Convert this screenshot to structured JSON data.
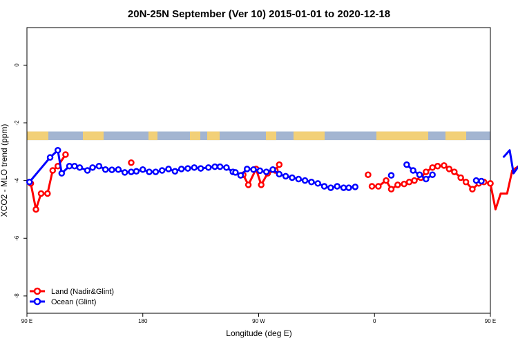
{
  "chart_data": {
    "type": "line",
    "title": "20N-25N September (Ver 10)   2015-01-01 to 2020-12-18",
    "xlabel": "Longitude (deg E)",
    "ylabel": "XCO2 - MLO trend (ppm)",
    "xlim": [
      90,
      450
    ],
    "ylim": [
      -8.6,
      1.3
    ],
    "xticks": [
      90,
      180,
      270,
      360,
      450,
      540
    ],
    "xtick_labels": [
      "90 E",
      "180",
      "90 W",
      "0",
      "90 E",
      "180"
    ],
    "yticks": [
      -8,
      -6,
      -4,
      -2,
      0
    ],
    "ytick_labels": [
      "-8",
      "-6",
      "-4",
      "-2",
      "0"
    ],
    "grid": false,
    "legend_position": "bottom-left",
    "map_band": {
      "y_top": -2.3,
      "y_bottom": -2.6,
      "ocean_color": "#a3b5d1",
      "land_color": "#f2d078"
    },
    "series": [
      {
        "name": "Land (Nadir&Glint)",
        "color": "#ff0000",
        "segments": [
          {
            "x": [
              93,
              97,
              101,
              106,
              110,
              114,
              120
            ],
            "y": [
              -4.1,
              -5.0,
              -4.45,
              -4.45,
              -3.65,
              -3.5,
              -3.1
            ]
          },
          {
            "x": [
              171
            ],
            "y": [
              -3.38
            ]
          },
          {
            "x": [
              258,
              262,
              268,
              272,
              277,
              283,
              286
            ],
            "y": [
              -3.8,
              -4.15,
              -3.6,
              -4.15,
              -3.75,
              -3.65,
              -3.45
            ]
          },
          {
            "x": [
              355
            ],
            "y": [
              -3.8
            ]
          },
          {
            "x": [
              358,
              363,
              369,
              373,
              378,
              383,
              387,
              391,
              396,
              400,
              405,
              409,
              414,
              418,
              422,
              427,
              431,
              436,
              441,
              445,
              450
            ],
            "y": [
              -4.2,
              -4.2,
              -4.0,
              -4.3,
              -4.15,
              -4.12,
              -4.05,
              -4.0,
              -3.9,
              -3.7,
              -3.55,
              -3.5,
              -3.48,
              -3.6,
              -3.7,
              -3.9,
              -4.05,
              -4.3,
              -4.1,
              -4.05,
              -4.1
            ]
          },
          {
            "x": [
              450,
              454,
              458,
              463,
              467,
              472,
              476
            ],
            "y": [
              -4.1,
              -5.0,
              -4.45,
              -4.45,
              -3.65,
              -3.5,
              -3.1
            ]
          }
        ]
      },
      {
        "name": "Ocean (Glint)",
        "color": "#0000ff",
        "segments": [
          {
            "x": [
              92,
              108,
              114,
              117,
              123,
              127,
              131,
              137,
              141,
              146,
              151,
              156,
              161,
              166,
              171,
              175,
              180,
              185,
              190,
              195,
              200,
              205,
              210,
              215,
              220,
              225,
              231,
              236,
              240,
              245,
              250,
              252,
              256,
              261,
              266,
              271,
              276,
              281,
              286,
              291,
              296,
              301,
              306,
              311,
              316,
              321,
              326,
              331,
              336,
              340,
              345
            ],
            "y": [
              -4.05,
              -3.2,
              -2.95,
              -3.75,
              -3.5,
              -3.5,
              -3.55,
              -3.65,
              -3.55,
              -3.5,
              -3.62,
              -3.63,
              -3.62,
              -3.72,
              -3.7,
              -3.68,
              -3.62,
              -3.7,
              -3.7,
              -3.65,
              -3.6,
              -3.68,
              -3.6,
              -3.58,
              -3.55,
              -3.58,
              -3.55,
              -3.52,
              -3.52,
              -3.55,
              -3.7,
              -3.72,
              -3.82,
              -3.6,
              -3.62,
              -3.66,
              -3.7,
              -3.62,
              -3.78,
              -3.85,
              -3.9,
              -3.95,
              -4.0,
              -4.05,
              -4.1,
              -4.2,
              -4.25,
              -4.2,
              -4.25,
              -4.25,
              -4.22
            ]
          },
          {
            "x": [
              373
            ],
            "y": [
              -3.82
            ]
          },
          {
            "x": [
              385,
              390,
              395,
              400,
              405
            ],
            "y": [
              -3.45,
              -3.65,
              -3.8,
              -3.95,
              -3.8
            ]
          },
          {
            "x": [
              439,
              443
            ],
            "y": [
              -4.0,
              -4.02
            ]
          },
          {
            "x": [
              460,
              465,
              468,
              472,
              477,
              483,
              487,
              492,
              497,
              502,
              507,
              512,
              517,
              522,
              527,
              533,
              538
            ],
            "y": [
              -3.2,
              -2.95,
              -3.75,
              -3.5,
              -3.5,
              -3.55,
              -3.65,
              -3.55,
              -3.5,
              -3.62,
              -3.63,
              -3.62,
              -3.72,
              -3.7,
              -3.68,
              -3.62,
              -3.66
            ]
          }
        ]
      }
    ]
  }
}
